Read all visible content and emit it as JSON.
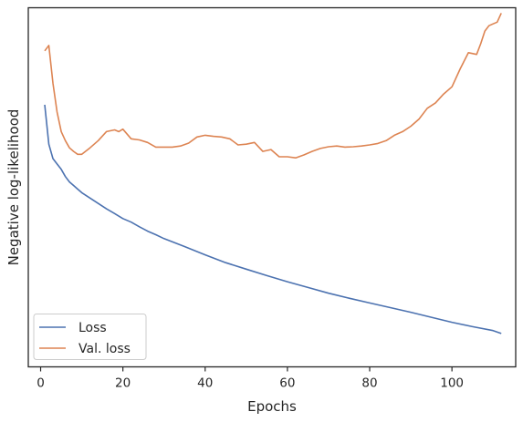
{
  "chart_data": {
    "type": "line",
    "title": "",
    "xlabel": "Epochs",
    "ylabel": "Negative log-likelihood",
    "xlim": [
      -3,
      115.5
    ],
    "ylim": [
      0.0,
      1.0
    ],
    "xticks": [
      0,
      20,
      40,
      60,
      80,
      100
    ],
    "yticks_visible": false,
    "grid": false,
    "legend_position": "lower-left",
    "series": [
      {
        "name": "Loss",
        "color": "#4c72b0",
        "x": [
          1,
          2,
          3,
          4,
          5,
          6,
          7,
          8,
          9,
          10,
          12,
          14,
          16,
          18,
          20,
          22,
          24,
          26,
          28,
          30,
          35,
          40,
          45,
          50,
          55,
          60,
          65,
          70,
          75,
          80,
          85,
          90,
          95,
          100,
          105,
          110,
          112
        ],
        "y": [
          0.73,
          0.62,
          0.58,
          0.565,
          0.55,
          0.53,
          0.515,
          0.505,
          0.495,
          0.485,
          0.47,
          0.455,
          0.44,
          0.427,
          0.413,
          0.403,
          0.39,
          0.378,
          0.368,
          0.357,
          0.335,
          0.312,
          0.29,
          0.272,
          0.254,
          0.237,
          0.221,
          0.205,
          0.191,
          0.178,
          0.165,
          0.152,
          0.138,
          0.124,
          0.112,
          0.101,
          0.093
        ]
      },
      {
        "name": "Val. loss",
        "color": "#dd8452",
        "x": [
          1,
          2,
          3,
          4,
          5,
          6,
          7,
          8,
          9,
          10,
          12,
          14,
          16,
          18,
          19,
          20,
          22,
          24,
          26,
          28,
          30,
          32,
          34,
          36,
          38,
          40,
          42,
          44,
          46,
          48,
          50,
          52,
          54,
          56,
          58,
          60,
          62,
          64,
          66,
          68,
          70,
          72,
          74,
          76,
          78,
          80,
          82,
          84,
          86,
          88,
          90,
          92,
          94,
          96,
          98,
          100,
          102,
          104,
          106,
          107,
          108,
          109,
          110,
          111,
          112
        ],
        "y": [
          0.88,
          0.895,
          0.79,
          0.71,
          0.655,
          0.63,
          0.61,
          0.6,
          0.592,
          0.592,
          0.61,
          0.63,
          0.655,
          0.66,
          0.655,
          0.662,
          0.635,
          0.632,
          0.625,
          0.612,
          0.612,
          0.612,
          0.615,
          0.623,
          0.64,
          0.645,
          0.642,
          0.64,
          0.635,
          0.618,
          0.62,
          0.625,
          0.6,
          0.605,
          0.585,
          0.585,
          0.582,
          0.59,
          0.6,
          0.608,
          0.613,
          0.615,
          0.612,
          0.613,
          0.615,
          0.618,
          0.622,
          0.63,
          0.645,
          0.655,
          0.67,
          0.69,
          0.72,
          0.735,
          0.76,
          0.78,
          0.83,
          0.875,
          0.87,
          0.9,
          0.935,
          0.95,
          0.955,
          0.96,
          0.985
        ]
      }
    ]
  }
}
